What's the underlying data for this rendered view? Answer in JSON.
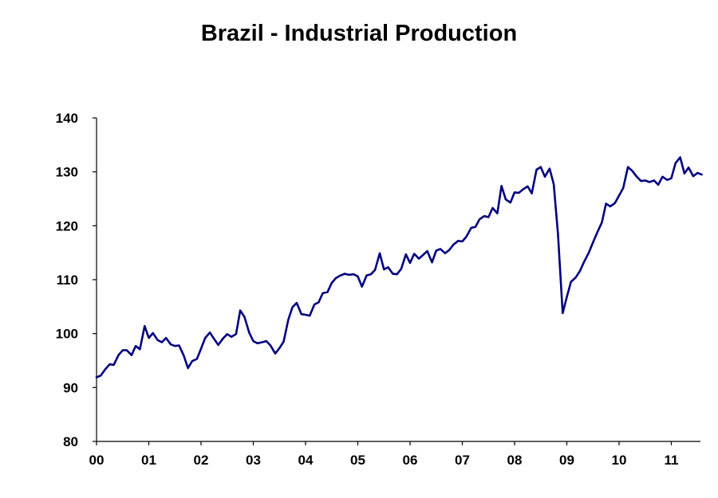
{
  "chart_data": {
    "type": "line",
    "title": "Brazil - Industrial Production",
    "xlabel": "",
    "ylabel": "",
    "ylim": [
      80,
      140
    ],
    "yticks": [
      80,
      90,
      100,
      110,
      120,
      130,
      140
    ],
    "xticks": [
      "00",
      "01",
      "02",
      "03",
      "04",
      "05",
      "06",
      "07",
      "08",
      "09",
      "10",
      "11"
    ],
    "xlim": [
      0,
      11.58
    ],
    "grid": false,
    "legend": "none",
    "colors": {
      "line": "#000080",
      "axis": "#000000"
    },
    "series": [
      {
        "x": [
          0.0,
          0.08,
          0.17,
          0.25,
          0.33,
          0.42,
          0.5,
          0.58,
          0.67,
          0.75,
          0.83,
          0.92,
          1.0,
          1.08,
          1.17,
          1.25,
          1.33,
          1.42,
          1.5,
          1.58,
          1.67,
          1.75,
          1.83,
          1.92,
          2.0,
          2.08,
          2.17,
          2.25,
          2.33,
          2.42,
          2.5,
          2.58,
          2.67,
          2.75,
          2.83,
          2.92,
          3.0,
          3.08,
          3.17,
          3.25,
          3.33,
          3.42,
          3.5,
          3.58,
          3.67,
          3.75,
          3.83,
          3.92,
          4.0,
          4.08,
          4.17,
          4.25,
          4.33,
          4.42,
          4.5,
          4.58,
          4.67,
          4.75,
          4.83,
          4.92,
          5.0,
          5.08,
          5.17,
          5.25,
          5.33,
          5.42,
          5.5,
          5.58,
          5.67,
          5.75,
          5.83,
          5.92,
          6.0,
          6.08,
          6.17,
          6.25,
          6.33,
          6.42,
          6.5,
          6.58,
          6.67,
          6.75,
          6.83,
          6.92,
          7.0,
          7.08,
          7.17,
          7.25,
          7.33,
          7.42,
          7.5,
          7.58,
          7.67,
          7.75,
          7.83,
          7.92,
          8.0,
          8.08,
          8.17,
          8.25,
          8.33,
          8.42,
          8.5,
          8.58,
          8.67,
          8.75,
          8.83,
          8.92,
          9.0,
          9.08,
          9.17,
          9.25,
          9.33,
          9.42,
          9.5,
          9.58,
          9.67,
          9.75,
          9.83,
          9.92,
          10.0,
          10.08,
          10.17,
          10.25,
          10.33,
          10.42,
          10.5,
          10.58,
          10.67,
          10.75,
          10.83,
          10.92,
          11.0,
          11.08,
          11.17,
          11.25,
          11.33,
          11.42,
          11.5,
          11.58
        ],
        "y": [
          91.9,
          92.2,
          93.4,
          94.3,
          94.2,
          96.0,
          96.9,
          96.9,
          96.0,
          97.7,
          97.1,
          101.4,
          99.2,
          100.1,
          98.8,
          98.4,
          99.2,
          98.0,
          97.7,
          97.8,
          95.9,
          93.6,
          94.9,
          95.3,
          97.2,
          99.2,
          100.2,
          99.0,
          97.9,
          99.1,
          99.9,
          99.4,
          99.9,
          104.3,
          103.1,
          100.2,
          98.6,
          98.2,
          98.4,
          98.6,
          97.8,
          96.3,
          97.3,
          98.5,
          102.6,
          104.9,
          105.7,
          103.6,
          103.5,
          103.3,
          105.4,
          105.8,
          107.5,
          107.7,
          109.4,
          110.3,
          110.8,
          111.1,
          110.9,
          111.0,
          110.6,
          108.7,
          110.8,
          111.0,
          111.8,
          114.9,
          111.9,
          112.3,
          111.1,
          111.0,
          112.0,
          114.7,
          113.1,
          114.8,
          113.9,
          114.6,
          115.3,
          113.2,
          115.4,
          115.7,
          114.9,
          115.5,
          116.5,
          117.2,
          117.1,
          118.0,
          119.6,
          119.8,
          121.2,
          121.8,
          121.6,
          123.3,
          122.3,
          127.4,
          124.9,
          124.3,
          126.2,
          126.1,
          126.8,
          127.3,
          126.0,
          130.4,
          130.9,
          129.1,
          130.6,
          127.7,
          118.5,
          103.8,
          106.8,
          109.6,
          110.4,
          111.6,
          113.3,
          115.0,
          116.9,
          118.7,
          120.6,
          124.1,
          123.6,
          124.2,
          125.6,
          127.0,
          130.9,
          130.2,
          129.2,
          128.3,
          128.4,
          128.1,
          128.4,
          127.6,
          129.1,
          128.5,
          128.8,
          131.6,
          132.7,
          129.7,
          130.8,
          129.2,
          129.8,
          129.5
        ]
      }
    ]
  }
}
